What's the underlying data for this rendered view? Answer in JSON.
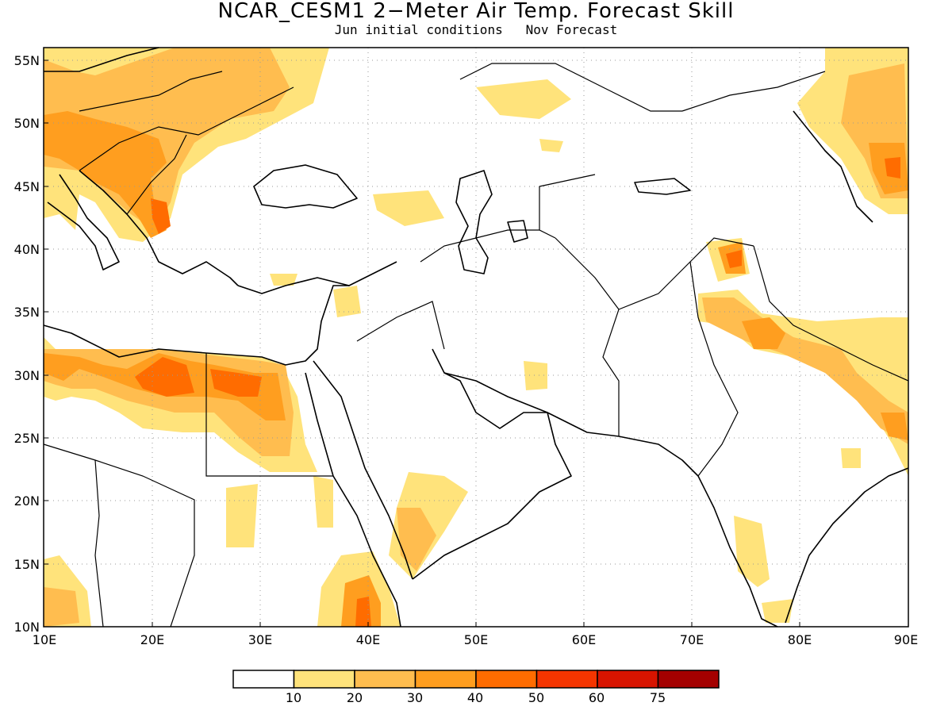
{
  "title": "NCAR_CESM1 2−Meter Air Temp. Forecast Skill",
  "subtitle_left": "Jun initial conditions",
  "subtitle_right": "Nov Forecast",
  "map": {
    "lon_range": [
      10,
      90
    ],
    "lat_range": [
      10,
      56
    ],
    "lon_ticks": [
      "10E",
      "20E",
      "30E",
      "40E",
      "50E",
      "60E",
      "70E",
      "80E",
      "90E"
    ],
    "lat_ticks": [
      "10N",
      "15N",
      "20N",
      "25N",
      "30N",
      "35N",
      "40N",
      "45N",
      "50N",
      "55N"
    ],
    "grid": "dotted",
    "skill_regions": [
      {
        "name": "central-europe",
        "level": 30
      },
      {
        "name": "balkans",
        "level": 30
      },
      {
        "name": "eastern-europe",
        "level": 20
      },
      {
        "name": "libya-egypt",
        "level": 40
      },
      {
        "name": "western-egypt",
        "level": 50
      },
      {
        "name": "eastern-ethiopia",
        "level": 40
      },
      {
        "name": "yemen",
        "level": 30
      },
      {
        "name": "northern-india-nepal",
        "level": 30
      },
      {
        "name": "kashmir",
        "level": 50
      },
      {
        "name": "far-east-siberia",
        "level": 40
      },
      {
        "name": "southern-india",
        "level": 20
      }
    ]
  },
  "colorbar": {
    "bins": [
      {
        "color": "#ffffff"
      },
      {
        "color": "#ffe37b"
      },
      {
        "color": "#ffbd4f"
      },
      {
        "color": "#ff9e1f"
      },
      {
        "color": "#ff6c00"
      },
      {
        "color": "#f53500"
      },
      {
        "color": "#d81400"
      },
      {
        "color": "#a40000"
      }
    ],
    "labels": [
      "10",
      "20",
      "30",
      "40",
      "50",
      "60",
      "75"
    ]
  }
}
